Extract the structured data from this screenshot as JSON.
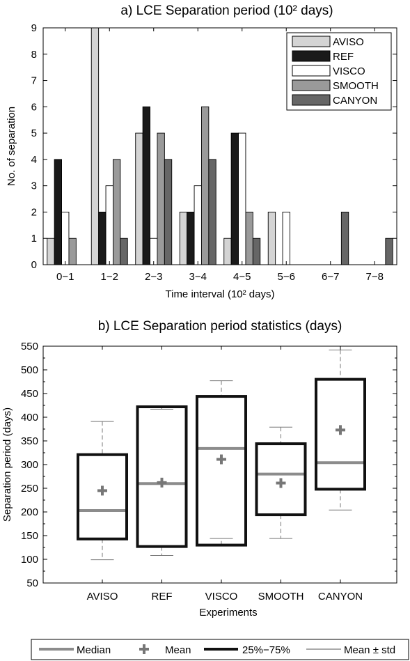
{
  "chart_data": [
    {
      "type": "bar",
      "title": "a) LCE Separation period (10² days)",
      "xlabel": "Time interval (10² days)",
      "ylabel": "No. of separation",
      "ylim": [
        0,
        9
      ],
      "yticks": [
        0,
        1,
        2,
        3,
        4,
        5,
        6,
        7,
        8,
        9
      ],
      "categories": [
        "0−1",
        "1−2",
        "2−3",
        "3−4",
        "4−5",
        "5−6",
        "6−7",
        "7−8"
      ],
      "legend_position": "top-right",
      "series": [
        {
          "name": "AVISO",
          "color": "#d4d4d4",
          "values": [
            1,
            9,
            5,
            2,
            1,
            2,
            0,
            0
          ]
        },
        {
          "name": "REF",
          "color": "#1a1a1a",
          "values": [
            4,
            2,
            6,
            2,
            5,
            0,
            0,
            0
          ]
        },
        {
          "name": "VISCO",
          "color": "#ffffff",
          "values": [
            2,
            3,
            1,
            3,
            5,
            2,
            0,
            0
          ]
        },
        {
          "name": "SMOOTH",
          "color": "#9a9a9a",
          "values": [
            1,
            4,
            5,
            6,
            2,
            0,
            0,
            0
          ]
        },
        {
          "name": "CANYON",
          "color": "#666666",
          "values": [
            0,
            1,
            4,
            4,
            1,
            0,
            2,
            1
          ]
        }
      ]
    },
    {
      "type": "box",
      "title": "b) LCE Separation period statistics (days)",
      "xlabel": "Experiments",
      "ylabel": "Separation period (days)",
      "ylim": [
        50,
        550
      ],
      "yticks": [
        50,
        100,
        150,
        200,
        250,
        300,
        350,
        400,
        450,
        500,
        550
      ],
      "categories": [
        "AVISO",
        "REF",
        "VISCO",
        "SMOOTH",
        "CANYON"
      ],
      "boxes": [
        {
          "name": "AVISO",
          "q1": 143,
          "q3": 321,
          "median": 203,
          "mean": 245,
          "mean_minus_std": 99,
          "mean_plus_std": 391
        },
        {
          "name": "REF",
          "q1": 127,
          "q3": 422,
          "median": 260,
          "mean": 262,
          "mean_minus_std": 108,
          "mean_plus_std": 417
        },
        {
          "name": "VISCO",
          "q1": 130,
          "q3": 444,
          "median": 334,
          "mean": 311,
          "mean_minus_std": 144,
          "mean_plus_std": 477
        },
        {
          "name": "SMOOTH",
          "q1": 194,
          "q3": 344,
          "median": 280,
          "mean": 261,
          "mean_minus_std": 144,
          "mean_plus_std": 379
        },
        {
          "name": "CANYON",
          "q1": 248,
          "q3": 480,
          "median": 304,
          "mean": 373,
          "mean_minus_std": 204,
          "mean_plus_std": 542
        }
      ],
      "colors": {
        "box": "#111111",
        "median": "#8c8c8c",
        "mean": "#777777",
        "whisker": "#777777"
      }
    }
  ],
  "legend": {
    "median_label": "Median",
    "mean_label": "Mean",
    "box_label": "25%−75%",
    "std_label": "Mean ± std"
  }
}
